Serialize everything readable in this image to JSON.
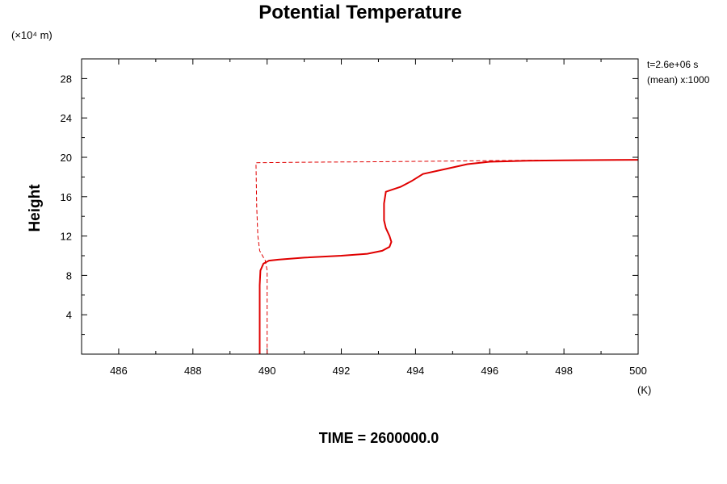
{
  "chart_data": {
    "type": "line",
    "title": "Potential Temperature",
    "ylabel": "Height",
    "y_unit": "(×10⁴ m)",
    "x_unit": "(K)",
    "xlim": [
      485,
      500
    ],
    "ylim": [
      0,
      30
    ],
    "x_ticks": [
      486,
      488,
      490,
      492,
      494,
      496,
      498,
      500
    ],
    "y_ticks": [
      4,
      8,
      12,
      16,
      20,
      24,
      28
    ],
    "x_tick_labels": [
      "486",
      "488",
      "490",
      "492",
      "494",
      "496",
      "498",
      "500"
    ],
    "y_tick_labels": [
      "4",
      "8",
      "12",
      "16",
      "20",
      "24",
      "28"
    ],
    "annotations": [
      "t=2.6e+06 s",
      "(mean) x:1000"
    ],
    "footer": "TIME = 2600000.0",
    "grid": false,
    "series": [
      {
        "style": "solid",
        "color": "#e00000",
        "points": [
          [
            489.8,
            0.0
          ],
          [
            489.8,
            2.0
          ],
          [
            489.8,
            5.0
          ],
          [
            489.8,
            7.0
          ],
          [
            489.82,
            8.5
          ],
          [
            489.9,
            9.2
          ],
          [
            490.05,
            9.5
          ],
          [
            490.3,
            9.6
          ],
          [
            491.0,
            9.8
          ],
          [
            492.0,
            10.0
          ],
          [
            492.7,
            10.2
          ],
          [
            493.1,
            10.5
          ],
          [
            493.3,
            10.9
          ],
          [
            493.35,
            11.4
          ],
          [
            493.3,
            12.0
          ],
          [
            493.2,
            12.8
          ],
          [
            493.15,
            13.6
          ],
          [
            493.15,
            14.4
          ],
          [
            493.15,
            15.3
          ],
          [
            493.2,
            16.5
          ],
          [
            493.6,
            17.0
          ],
          [
            493.9,
            17.6
          ],
          [
            494.2,
            18.3
          ],
          [
            494.8,
            18.8
          ],
          [
            495.4,
            19.3
          ],
          [
            496.0,
            19.55
          ],
          [
            497.0,
            19.65
          ],
          [
            498.0,
            19.7
          ],
          [
            499.0,
            19.72
          ],
          [
            500.0,
            19.75
          ]
        ]
      },
      {
        "style": "dashed",
        "color": "#e00000",
        "points": [
          [
            490.0,
            0.0
          ],
          [
            490.0,
            6.0
          ],
          [
            490.0,
            8.5
          ],
          [
            489.95,
            9.5
          ],
          [
            489.8,
            10.5
          ],
          [
            489.75,
            12.0
          ],
          [
            489.72,
            15.0
          ],
          [
            489.7,
            19.45
          ],
          [
            491.0,
            19.5
          ],
          [
            493.0,
            19.55
          ],
          [
            495.0,
            19.62
          ],
          [
            497.0,
            19.7
          ],
          [
            500.0,
            19.75
          ]
        ]
      }
    ]
  }
}
